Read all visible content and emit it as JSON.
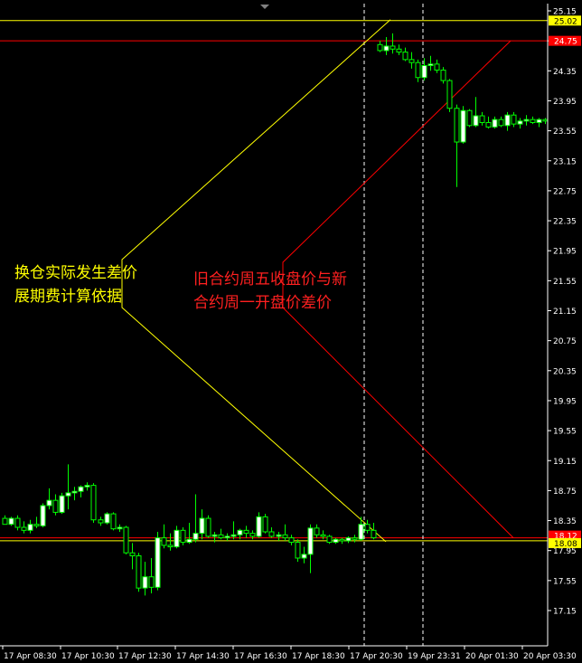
{
  "chart_data": {
    "type": "candlestick",
    "colors": {
      "background": "#000000",
      "axis_text": "#ffffff",
      "bull_body": "#ffffff",
      "bear_body": "#000000",
      "wick": "#00ff00",
      "yellow_lines": "#ffff00",
      "red_lines": "#ff0000"
    },
    "y_ticks": [
      "25.15",
      "24.75",
      "24.35",
      "23.95",
      "23.55",
      "23.15",
      "22.75",
      "22.35",
      "21.95",
      "21.55",
      "21.15",
      "20.75",
      "20.35",
      "19.95",
      "19.55",
      "19.15",
      "18.75",
      "18.35",
      "17.95",
      "17.55",
      "17.15"
    ],
    "x_ticks": [
      "17 Apr 08:30",
      "17 Apr 10:30",
      "17 Apr 12:30",
      "17 Apr 14:30",
      "17 Apr 16:30",
      "17 Apr 18:30",
      "17 Apr 20:30",
      "19 Apr 23:31",
      "20 Apr 01:30",
      "20 Apr 03:30"
    ],
    "price_labels": [
      {
        "text": "25.02",
        "value": 25.02,
        "color": "yellow"
      },
      {
        "text": "24.75",
        "value": 24.75,
        "color": "red"
      },
      {
        "text": "18.12",
        "value": 18.12,
        "color": "red"
      },
      {
        "text": "18.08",
        "value": 18.08,
        "color": "yellow"
      }
    ],
    "horizontal_lines": [
      {
        "value": 25.02,
        "color": "yellow"
      },
      {
        "value": 24.75,
        "color": "red"
      },
      {
        "value": 18.12,
        "color": "red"
      },
      {
        "value": 18.08,
        "color": "yellow"
      }
    ],
    "candles": [
      {
        "o": 18.38,
        "h": 18.42,
        "l": 18.3,
        "c": 18.3
      },
      {
        "o": 18.3,
        "h": 18.4,
        "l": 18.28,
        "c": 18.38
      },
      {
        "o": 18.38,
        "h": 18.42,
        "l": 18.22,
        "c": 18.26
      },
      {
        "o": 18.26,
        "h": 18.34,
        "l": 18.18,
        "c": 18.22
      },
      {
        "o": 18.22,
        "h": 18.36,
        "l": 18.18,
        "c": 18.3
      },
      {
        "o": 18.3,
        "h": 18.4,
        "l": 18.25,
        "c": 18.28
      },
      {
        "o": 18.28,
        "h": 18.58,
        "l": 18.26,
        "c": 18.55
      },
      {
        "o": 18.55,
        "h": 18.78,
        "l": 18.5,
        "c": 18.62
      },
      {
        "o": 18.62,
        "h": 18.7,
        "l": 18.42,
        "c": 18.46
      },
      {
        "o": 18.46,
        "h": 18.72,
        "l": 18.44,
        "c": 18.68
      },
      {
        "o": 18.68,
        "h": 19.1,
        "l": 18.5,
        "c": 18.72
      },
      {
        "o": 18.72,
        "h": 18.8,
        "l": 18.62,
        "c": 18.74
      },
      {
        "o": 18.74,
        "h": 18.82,
        "l": 18.66,
        "c": 18.8
      },
      {
        "o": 18.8,
        "h": 18.86,
        "l": 18.75,
        "c": 18.82
      },
      {
        "o": 18.82,
        "h": 18.85,
        "l": 18.32,
        "c": 18.36
      },
      {
        "o": 18.36,
        "h": 18.4,
        "l": 18.28,
        "c": 18.32
      },
      {
        "o": 18.32,
        "h": 18.46,
        "l": 18.3,
        "c": 18.44
      },
      {
        "o": 18.44,
        "h": 18.46,
        "l": 18.22,
        "c": 18.24
      },
      {
        "o": 18.24,
        "h": 18.3,
        "l": 18.2,
        "c": 18.26
      },
      {
        "o": 18.26,
        "h": 18.28,
        "l": 17.9,
        "c": 17.92
      },
      {
        "o": 17.92,
        "h": 18.05,
        "l": 17.7,
        "c": 17.88
      },
      {
        "o": 17.88,
        "h": 17.92,
        "l": 17.4,
        "c": 17.45
      },
      {
        "o": 17.45,
        "h": 17.8,
        "l": 17.35,
        "c": 17.6
      },
      {
        "o": 17.6,
        "h": 17.85,
        "l": 17.38,
        "c": 17.46
      },
      {
        "o": 17.46,
        "h": 18.2,
        "l": 17.42,
        "c": 18.12
      },
      {
        "o": 18.12,
        "h": 18.3,
        "l": 17.98,
        "c": 18.02
      },
      {
        "o": 18.02,
        "h": 18.18,
        "l": 17.95,
        "c": 18.0
      },
      {
        "o": 18.0,
        "h": 18.28,
        "l": 17.98,
        "c": 18.22
      },
      {
        "o": 18.22,
        "h": 18.26,
        "l": 18.02,
        "c": 18.06
      },
      {
        "o": 18.06,
        "h": 18.32,
        "l": 18.04,
        "c": 18.1
      },
      {
        "o": 18.1,
        "h": 18.7,
        "l": 18.06,
        "c": 18.18
      },
      {
        "o": 18.18,
        "h": 18.5,
        "l": 18.1,
        "c": 18.38
      },
      {
        "o": 18.38,
        "h": 18.42,
        "l": 18.12,
        "c": 18.14
      },
      {
        "o": 18.14,
        "h": 18.2,
        "l": 18.06,
        "c": 18.16
      },
      {
        "o": 18.16,
        "h": 18.24,
        "l": 18.1,
        "c": 18.12
      },
      {
        "o": 18.12,
        "h": 18.18,
        "l": 18.08,
        "c": 18.14
      },
      {
        "o": 18.14,
        "h": 18.34,
        "l": 18.1,
        "c": 18.16
      },
      {
        "o": 18.16,
        "h": 18.24,
        "l": 18.1,
        "c": 18.22
      },
      {
        "o": 18.22,
        "h": 18.28,
        "l": 18.12,
        "c": 18.18
      },
      {
        "o": 18.18,
        "h": 18.22,
        "l": 18.1,
        "c": 18.14
      },
      {
        "o": 18.14,
        "h": 18.46,
        "l": 18.12,
        "c": 18.4
      },
      {
        "o": 18.4,
        "h": 18.44,
        "l": 18.18,
        "c": 18.2
      },
      {
        "o": 18.2,
        "h": 18.26,
        "l": 18.12,
        "c": 18.14
      },
      {
        "o": 18.14,
        "h": 18.2,
        "l": 18.08,
        "c": 18.16
      },
      {
        "o": 18.16,
        "h": 18.3,
        "l": 18.08,
        "c": 18.12
      },
      {
        "o": 18.12,
        "h": 18.16,
        "l": 18.02,
        "c": 18.06
      },
      {
        "o": 18.06,
        "h": 18.1,
        "l": 17.8,
        "c": 17.85
      },
      {
        "o": 17.85,
        "h": 18.0,
        "l": 17.78,
        "c": 17.9
      },
      {
        "o": 17.9,
        "h": 18.3,
        "l": 17.65,
        "c": 18.25
      },
      {
        "o": 18.25,
        "h": 18.3,
        "l": 18.12,
        "c": 18.16
      },
      {
        "o": 18.16,
        "h": 18.22,
        "l": 18.1,
        "c": 18.14
      },
      {
        "o": 18.14,
        "h": 18.16,
        "l": 18.04,
        "c": 18.06
      },
      {
        "o": 18.06,
        "h": 18.12,
        "l": 18.04,
        "c": 18.1
      },
      {
        "o": 18.1,
        "h": 18.12,
        "l": 18.04,
        "c": 18.08
      },
      {
        "o": 18.08,
        "h": 18.14,
        "l": 18.05,
        "c": 18.12
      },
      {
        "o": 18.12,
        "h": 18.16,
        "l": 18.06,
        "c": 18.1
      },
      {
        "o": 18.1,
        "h": 18.4,
        "l": 18.08,
        "c": 18.3
      },
      {
        "o": 18.3,
        "h": 18.36,
        "l": 18.18,
        "c": 18.22
      },
      {
        "o": 18.22,
        "h": 18.32,
        "l": 18.1,
        "c": 18.12
      },
      {
        "o": 24.7,
        "h": 24.75,
        "l": 24.6,
        "c": 24.62
      },
      {
        "o": 24.62,
        "h": 24.8,
        "l": 24.56,
        "c": 24.68
      },
      {
        "o": 24.68,
        "h": 24.85,
        "l": 24.58,
        "c": 24.64
      },
      {
        "o": 24.64,
        "h": 24.7,
        "l": 24.56,
        "c": 24.6
      },
      {
        "o": 24.6,
        "h": 24.66,
        "l": 24.48,
        "c": 24.5
      },
      {
        "o": 24.5,
        "h": 24.6,
        "l": 24.38,
        "c": 24.46
      },
      {
        "o": 24.46,
        "h": 24.5,
        "l": 24.2,
        "c": 24.26
      },
      {
        "o": 24.26,
        "h": 24.52,
        "l": 24.22,
        "c": 24.42
      },
      {
        "o": 24.42,
        "h": 24.55,
        "l": 24.35,
        "c": 24.44
      },
      {
        "o": 24.44,
        "h": 24.5,
        "l": 24.32,
        "c": 24.36
      },
      {
        "o": 24.36,
        "h": 24.4,
        "l": 24.18,
        "c": 24.22
      },
      {
        "o": 24.22,
        "h": 24.24,
        "l": 23.8,
        "c": 23.85
      },
      {
        "o": 23.85,
        "h": 23.9,
        "l": 22.8,
        "c": 23.4
      },
      {
        "o": 23.4,
        "h": 23.88,
        "l": 23.38,
        "c": 23.82
      },
      {
        "o": 23.82,
        "h": 23.84,
        "l": 23.6,
        "c": 23.62
      },
      {
        "o": 23.62,
        "h": 24.0,
        "l": 23.6,
        "c": 23.75
      },
      {
        "o": 23.75,
        "h": 23.8,
        "l": 23.62,
        "c": 23.66
      },
      {
        "o": 23.66,
        "h": 23.74,
        "l": 23.58,
        "c": 23.6
      },
      {
        "o": 23.6,
        "h": 23.74,
        "l": 23.58,
        "c": 23.7
      },
      {
        "o": 23.7,
        "h": 23.74,
        "l": 23.6,
        "c": 23.62
      },
      {
        "o": 23.62,
        "h": 23.8,
        "l": 23.55,
        "c": 23.76
      },
      {
        "o": 23.76,
        "h": 23.8,
        "l": 23.6,
        "c": 23.64
      },
      {
        "o": 23.64,
        "h": 23.72,
        "l": 23.58,
        "c": 23.68
      },
      {
        "o": 23.68,
        "h": 23.76,
        "l": 23.62,
        "c": 23.7
      },
      {
        "o": 23.7,
        "h": 23.74,
        "l": 23.64,
        "c": 23.66
      },
      {
        "o": 23.66,
        "h": 23.72,
        "l": 23.6,
        "c": 23.7
      },
      {
        "o": 23.7,
        "h": 23.72,
        "l": 23.64,
        "c": 23.68
      }
    ],
    "annotations": {
      "yellow_text": "换仓实际发生差价\n展期费计算依据",
      "red_text": "旧合约周五收盘价与新\n合约周一开盘价差价"
    }
  }
}
